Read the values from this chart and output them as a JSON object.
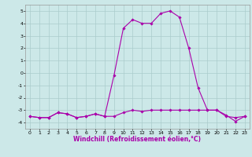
{
  "xlabel": "Windchill (Refroidissement éolien,°C)",
  "background_color": "#cce8e8",
  "grid_color": "#aacccc",
  "line_color": "#aa00aa",
  "xlim": [
    -0.5,
    23.5
  ],
  "ylim": [
    -4.5,
    5.5
  ],
  "yticks": [
    -4,
    -3,
    -2,
    -1,
    0,
    1,
    2,
    3,
    4,
    5
  ],
  "xticks": [
    0,
    1,
    2,
    3,
    4,
    5,
    6,
    7,
    8,
    9,
    10,
    11,
    12,
    13,
    14,
    15,
    16,
    17,
    18,
    19,
    20,
    21,
    22,
    23
  ],
  "line1_x": [
    0,
    1,
    2,
    3,
    4,
    5,
    6,
    7,
    8,
    9,
    10,
    11,
    12,
    13,
    14,
    15,
    16,
    17,
    18,
    19,
    20,
    21,
    22,
    23
  ],
  "line1_y": [
    -3.5,
    -3.6,
    -3.6,
    -3.2,
    -3.3,
    -3.6,
    -3.5,
    -3.3,
    -3.5,
    -0.2,
    3.6,
    4.3,
    4.0,
    4.0,
    4.8,
    5.0,
    4.5,
    2.0,
    -1.2,
    -3.0,
    -3.0,
    -3.5,
    -3.6,
    -3.5
  ],
  "line2_x": [
    0,
    1,
    2,
    3,
    4,
    5,
    6,
    7,
    8,
    9,
    10,
    11,
    12,
    13,
    14,
    15,
    16,
    17,
    18,
    19,
    20,
    21,
    22,
    23
  ],
  "line2_y": [
    -3.5,
    -3.6,
    -3.6,
    -3.2,
    -3.3,
    -3.6,
    -3.5,
    -3.3,
    -3.5,
    -3.5,
    -3.2,
    -3.0,
    -3.1,
    -3.0,
    -3.0,
    -3.0,
    -3.0,
    -3.0,
    -3.0,
    -3.0,
    -3.0,
    -3.4,
    -3.9,
    -3.5
  ],
  "marker": "D",
  "markersize": 1.8,
  "linewidth": 0.8,
  "tick_fontsize": 4.5,
  "xlabel_fontsize": 5.5
}
